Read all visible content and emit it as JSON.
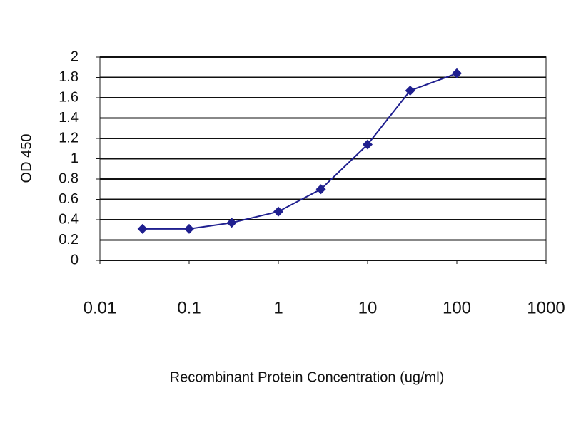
{
  "chart_data": {
    "type": "line",
    "x_label": "Recombinant Protein Concentration (ug/ml)",
    "y_label": "OD 450",
    "x": [
      0.03,
      0.1,
      0.3,
      1,
      3,
      10,
      30,
      100
    ],
    "series": [
      {
        "name": "OD 450",
        "color": "#1f1f8f",
        "values": [
          0.31,
          0.31,
          0.37,
          0.48,
          0.7,
          1.14,
          1.67,
          1.84
        ]
      }
    ],
    "xscale": "log",
    "xlim": [
      0.01,
      1000
    ],
    "xticks": [
      0.01,
      0.1,
      1,
      10,
      100,
      1000
    ],
    "ylim": [
      0,
      2
    ],
    "yticks": [
      0,
      0.2,
      0.4,
      0.6,
      0.8,
      1,
      1.2,
      1.4,
      1.6,
      1.8,
      2
    ],
    "grid": true
  }
}
